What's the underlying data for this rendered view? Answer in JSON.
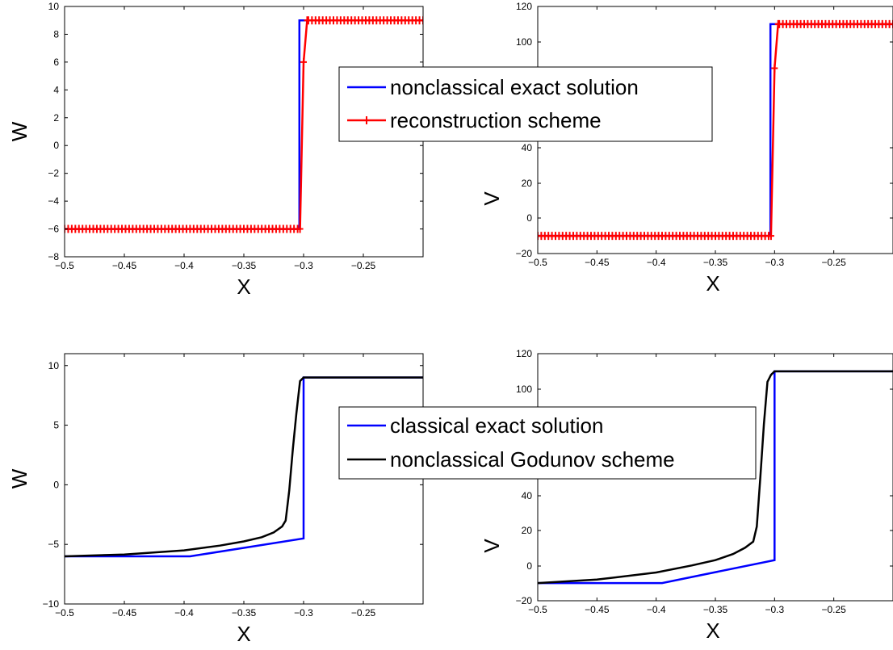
{
  "chart_data": [
    {
      "type": "line",
      "panel": "top-left",
      "xlabel": "X",
      "ylabel": "W",
      "xlim": [
        -0.5,
        -0.2
      ],
      "ylim": [
        -8,
        10
      ],
      "xticks": [
        -0.5,
        -0.45,
        -0.4,
        -0.35,
        -0.3,
        -0.25
      ],
      "xtick_labels": [
        "−0.5",
        "−0.45",
        "−0.4",
        "−0.35",
        "−0.3",
        "−0.25"
      ],
      "yticks": [
        -8,
        -6,
        -4,
        -2,
        0,
        2,
        4,
        6,
        8,
        10
      ],
      "ytick_labels": [
        "−8",
        "−6",
        "−4",
        "−2",
        "0",
        "2",
        "4",
        "6",
        "8",
        "10"
      ],
      "grid": false,
      "legend": "center-right",
      "series": [
        {
          "name": "nonclassical exact solution",
          "color": "#0000ff",
          "marker": "none",
          "x": [
            -0.5,
            -0.3035,
            -0.3035,
            -0.2
          ],
          "y": [
            -6,
            -6,
            9,
            9
          ]
        },
        {
          "name": "reconstruction scheme",
          "color": "#ff0000",
          "marker": "plus",
          "x_start": -0.5,
          "x_step": 0.003,
          "x_end": -0.2,
          "x_jump": [
            -0.303,
            -0.3,
            -0.297
          ],
          "y_jump": [
            -6,
            6,
            9
          ],
          "y_left": -6,
          "y_right": 9
        }
      ]
    },
    {
      "type": "line",
      "panel": "top-right",
      "xlabel": "X",
      "ylabel": "V",
      "xlim": [
        -0.5,
        -0.2
      ],
      "ylim": [
        -20,
        120
      ],
      "xticks": [
        -0.5,
        -0.45,
        -0.4,
        -0.35,
        -0.3,
        -0.25
      ],
      "xtick_labels": [
        "−0.5",
        "−0.45",
        "−0.4",
        "−0.35",
        "−0.3",
        "−0.25"
      ],
      "yticks": [
        -20,
        0,
        20,
        40,
        100,
        120
      ],
      "ytick_labels": [
        "−20",
        "0",
        "20",
        "40",
        "100",
        "120"
      ],
      "grid": false,
      "series": [
        {
          "name": "nonclassical exact solution",
          "color": "#0000ff",
          "marker": "none",
          "x": [
            -0.5,
            -0.3035,
            -0.3035,
            -0.2
          ],
          "y": [
            -10,
            -10,
            110,
            110
          ]
        },
        {
          "name": "reconstruction scheme",
          "color": "#ff0000",
          "marker": "plus",
          "x_start": -0.5,
          "x_step": 0.003,
          "x_end": -0.2,
          "x_jump": [
            -0.303,
            -0.3,
            -0.297
          ],
          "y_jump": [
            -10,
            85,
            110
          ],
          "y_left": -10,
          "y_right": 110
        }
      ]
    },
    {
      "type": "line",
      "panel": "bottom-left",
      "xlabel": "X",
      "ylabel": "W",
      "xlim": [
        -0.5,
        -0.2
      ],
      "ylim": [
        -10,
        11
      ],
      "xticks": [
        -0.5,
        -0.45,
        -0.4,
        -0.35,
        -0.3,
        -0.25
      ],
      "xtick_labels": [
        "−0.5",
        "−0.45",
        "−0.4",
        "−0.35",
        "−0.3",
        "−0.25"
      ],
      "yticks": [
        -10,
        -5,
        0,
        5,
        10
      ],
      "ytick_labels": [
        "−10",
        "−5",
        "0",
        "5",
        "10"
      ],
      "grid": false,
      "legend": "center-right",
      "series": [
        {
          "name": "classical exact solution",
          "color": "#0000ff",
          "x": [
            -0.5,
            -0.395,
            -0.3,
            -0.3,
            -0.2
          ],
          "y": [
            -6,
            -6,
            -4.5,
            9,
            9
          ]
        },
        {
          "name": "nonclassical Godunov scheme",
          "color": "#000000",
          "x": [
            -0.5,
            -0.45,
            -0.4,
            -0.37,
            -0.35,
            -0.335,
            -0.325,
            -0.318,
            -0.315,
            -0.312,
            -0.309,
            -0.306,
            -0.303,
            -0.3,
            -0.29,
            -0.2
          ],
          "y": [
            -6,
            -5.85,
            -5.5,
            -5.1,
            -4.75,
            -4.4,
            -4,
            -3.5,
            -3,
            -0.5,
            3,
            6,
            8.7,
            9,
            9,
            9
          ]
        }
      ]
    },
    {
      "type": "line",
      "panel": "bottom-right",
      "xlabel": "X",
      "ylabel": "V",
      "xlim": [
        -0.5,
        -0.2
      ],
      "ylim": [
        -20,
        120
      ],
      "xticks": [
        -0.5,
        -0.45,
        -0.4,
        -0.35,
        -0.3,
        -0.25
      ],
      "xtick_labels": [
        "−0.5",
        "−0.45",
        "−0.4",
        "−0.35",
        "−0.3",
        "−0.25"
      ],
      "yticks": [
        -20,
        0,
        20,
        40,
        100,
        120
      ],
      "ytick_labels": [
        "−20",
        "0",
        "20",
        "40",
        "100",
        "120"
      ],
      "grid": false,
      "series": [
        {
          "name": "classical exact solution",
          "color": "#0000ff",
          "x": [
            -0.5,
            -0.395,
            -0.3,
            -0.3,
            -0.2
          ],
          "y": [
            -10,
            -10,
            3,
            110,
            110
          ]
        },
        {
          "name": "nonclassical Godunov scheme",
          "color": "#000000",
          "x": [
            -0.5,
            -0.45,
            -0.4,
            -0.37,
            -0.35,
            -0.335,
            -0.325,
            -0.318,
            -0.315,
            -0.312,
            -0.309,
            -0.306,
            -0.303,
            -0.3,
            -0.29,
            -0.2
          ],
          "y": [
            -10,
            -8,
            -4,
            0,
            3,
            6.5,
            10,
            13.5,
            22,
            50,
            80,
            104,
            108,
            110,
            110,
            110
          ]
        }
      ]
    }
  ],
  "legends": [
    {
      "entries": [
        "nonclassical exact solution",
        "reconstruction scheme"
      ]
    },
    {
      "entries": [
        "classical exact solution",
        "nonclassical Godunov scheme"
      ]
    }
  ]
}
